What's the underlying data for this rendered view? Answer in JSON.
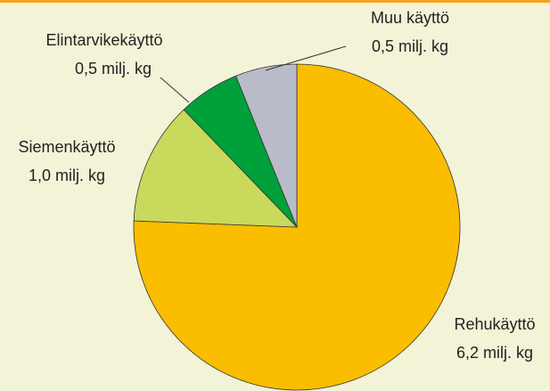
{
  "chart_data": {
    "type": "pie",
    "categories": [
      "Rehukäyttö",
      "Siemenkäyttö",
      "Elintarvikekäyttö",
      "Muu käyttö"
    ],
    "values": [
      6.2,
      1.0,
      0.5,
      0.5
    ],
    "value_labels": [
      "6,2 milj. kg",
      "1,0 milj. kg",
      "0,5 milj. kg",
      "0,5 milj. kg"
    ],
    "colors": [
      "#fbbd00",
      "#c9d95c",
      "#00a03a",
      "#b9bcc8"
    ]
  }
}
